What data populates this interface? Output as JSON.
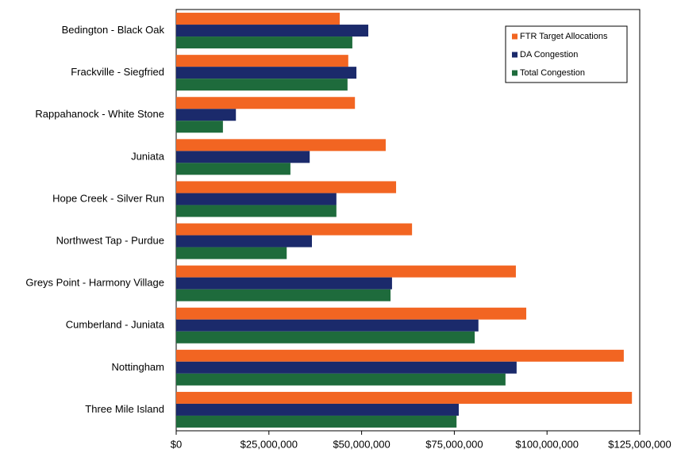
{
  "chart_data": {
    "type": "hbar",
    "categories": [
      "Bedington - Black Oak",
      "Frackville - Siegfried",
      "Rappahanock - White Stone",
      "Juniata",
      "Hope Creek - Silver Run",
      "Northwest Tap - Purdue",
      "Greys Point - Harmony Village",
      "Cumberland - Juniata",
      "Nottingham",
      "Three Mile Island"
    ],
    "series": [
      {
        "name": "FTR Target Allocations",
        "color": "#f26522",
        "values": [
          44100000,
          46400000,
          48200000,
          56500000,
          59300000,
          63600000,
          91600000,
          94400000,
          120700000,
          122900000
        ]
      },
      {
        "name": "DA Congestion",
        "color": "#1b2a6b",
        "values": [
          51800000,
          48600000,
          16100000,
          36000000,
          43200000,
          36600000,
          58200000,
          81500000,
          91800000,
          76200000
        ]
      },
      {
        "name": "Total Congestion",
        "color": "#1e6b3c",
        "values": [
          47500000,
          46200000,
          12600000,
          30800000,
          43200000,
          29800000,
          57800000,
          80500000,
          88800000,
          75600000
        ]
      }
    ],
    "xlim": [
      0,
      125000000
    ],
    "xticks": [
      {
        "value": 0,
        "label": "$0"
      },
      {
        "value": 25000000,
        "label": "$25,000,000"
      },
      {
        "value": 50000000,
        "label": "$50,000,000"
      },
      {
        "value": 75000000,
        "label": "$75,000,000"
      },
      {
        "value": 100000000,
        "label": "$100,000,000"
      },
      {
        "value": 125000000,
        "label": "$125,000,000"
      }
    ],
    "legend": "top-right"
  }
}
